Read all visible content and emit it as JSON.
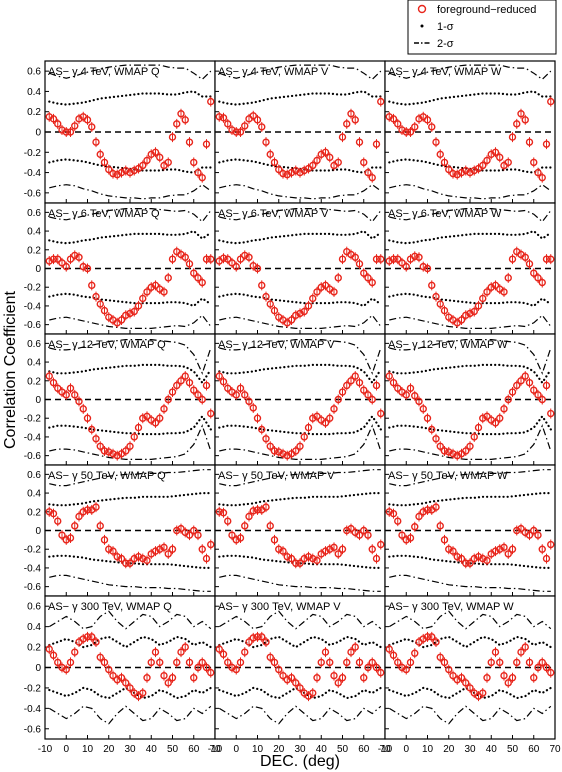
{
  "figure": {
    "ylabel": "Correlation Coefficient",
    "xlabel": "DEC. (deg)",
    "legend": {
      "placement": "top-right",
      "entries": [
        {
          "label": "foreground−reduced",
          "marker": "circle",
          "color": "#e8251b"
        },
        {
          "label": "1-σ",
          "marker": "dot",
          "color": "#000000"
        },
        {
          "label": "2-σ",
          "marker": "dash-dot",
          "color": "#000000"
        }
      ]
    },
    "colors": {
      "data": "#e8251b",
      "band": "#000000",
      "axis": "#000000"
    }
  },
  "chart_data": {
    "type": "scatter",
    "layout": "5x3 grid",
    "xlim": [
      -10,
      70
    ],
    "ylim": [
      -0.7,
      0.7
    ],
    "x_ticks": [
      -10,
      0,
      10,
      20,
      30,
      40,
      50,
      60,
      70
    ],
    "y_ticks": [
      0.6,
      0.4,
      0.2,
      0,
      -0.2,
      -0.4,
      -0.6
    ],
    "y_tick_labels": [
      "0.6",
      "0.4",
      "0.2",
      "0",
      "-0.2",
      "-0.4",
      "-0.6"
    ],
    "grid": false,
    "zero_line": "dashed",
    "dec": [
      -8,
      -6,
      -4,
      -2,
      0,
      2,
      4,
      6,
      8,
      10,
      12,
      14,
      16,
      18,
      20,
      22,
      24,
      26,
      28,
      30,
      32,
      34,
      36,
      38,
      40,
      42,
      44,
      46,
      48,
      50,
      52,
      54,
      56,
      58,
      60,
      62,
      64,
      66,
      68
    ],
    "band_x": [
      -8,
      -4,
      0,
      4,
      8,
      12,
      16,
      20,
      24,
      28,
      32,
      36,
      40,
      44,
      48,
      52,
      56,
      60,
      64,
      68
    ],
    "row_labels": [
      [
        "AS− γ 4 TeV, WMAP Q",
        "AS− γ 4 TeV, WMAP V",
        "AS− γ 4 TeV, WMAP W"
      ],
      [
        "AS− γ 6 TeV, WMAP Q",
        "AS− γ 6 TeV, WMAP V",
        "AS− γ 6 TeV, WMAP W"
      ],
      [
        "AS− γ 12 TeV, WMAP Q",
        "AS− γ 12 TeV, WMAP V",
        "AS− γ 12 TeV, WMAP W"
      ],
      [
        "AS− γ 50 TeV, WMAP Q",
        "AS− γ 50 TeV, WMAP V",
        "AS− γ 50 TeV, WMAP W"
      ],
      [
        "AS− γ 300 TeV, WMAP Q",
        "AS− γ 300 TeV, WMAP V",
        "AS− γ 300 TeV, WMAP W"
      ]
    ],
    "rows": [
      {
        "energy": "4 TeV",
        "values": [
          0.15,
          0.13,
          0.08,
          0.02,
          0.0,
          0.0,
          0.06,
          0.13,
          0.15,
          0.12,
          0.05,
          -0.1,
          -0.22,
          -0.3,
          -0.37,
          -0.41,
          -0.42,
          -0.4,
          -0.38,
          -0.4,
          -0.38,
          -0.36,
          -0.33,
          -0.28,
          -0.22,
          -0.2,
          -0.25,
          -0.33,
          -0.3,
          -0.05,
          0.08,
          0.18,
          0.12,
          -0.1,
          -0.3,
          -0.4,
          -0.45,
          -0.12,
          0.3
        ],
        "one_sigma_upper": [
          0.3,
          0.28,
          0.27,
          0.28,
          0.29,
          0.31,
          0.33,
          0.34,
          0.35,
          0.36,
          0.37,
          0.38,
          0.38,
          0.38,
          0.37,
          0.37,
          0.39,
          0.4,
          0.35,
          0.35
        ],
        "one_sigma_lower": [
          -0.3,
          -0.28,
          -0.27,
          -0.28,
          -0.29,
          -0.31,
          -0.33,
          -0.34,
          -0.35,
          -0.36,
          -0.37,
          -0.38,
          -0.38,
          -0.38,
          -0.37,
          -0.37,
          -0.39,
          -0.4,
          -0.35,
          -0.35
        ],
        "two_sigma_upper": [
          0.58,
          0.55,
          0.53,
          0.55,
          0.58,
          0.6,
          0.62,
          0.64,
          0.65,
          0.66,
          0.66,
          0.66,
          0.66,
          0.66,
          0.64,
          0.63,
          0.63,
          0.58,
          0.52,
          0.6
        ],
        "two_sigma_lower": [
          -0.55,
          -0.53,
          -0.52,
          -0.53,
          -0.56,
          -0.58,
          -0.61,
          -0.63,
          -0.64,
          -0.65,
          -0.65,
          -0.66,
          -0.65,
          -0.65,
          -0.63,
          -0.62,
          -0.62,
          -0.58,
          -0.52,
          -0.58
        ]
      },
      {
        "energy": "6 TeV",
        "values": [
          0.08,
          0.1,
          0.1,
          0.06,
          0.02,
          0.1,
          0.14,
          0.12,
          0.02,
          0.0,
          -0.18,
          -0.3,
          -0.38,
          -0.45,
          -0.52,
          -0.55,
          -0.58,
          -0.55,
          -0.5,
          -0.48,
          -0.46,
          -0.4,
          -0.32,
          -0.25,
          -0.2,
          -0.18,
          -0.22,
          -0.25,
          -0.1,
          0.1,
          0.18,
          0.15,
          0.12,
          0.05,
          -0.05,
          -0.1,
          -0.15,
          0.1,
          0.1
        ],
        "one_sigma_upper": [
          0.3,
          0.28,
          0.27,
          0.28,
          0.3,
          0.31,
          0.33,
          0.34,
          0.35,
          0.36,
          0.37,
          0.37,
          0.37,
          0.37,
          0.36,
          0.36,
          0.37,
          0.4,
          0.32,
          0.38
        ],
        "one_sigma_lower": [
          -0.3,
          -0.28,
          -0.27,
          -0.28,
          -0.3,
          -0.31,
          -0.33,
          -0.34,
          -0.35,
          -0.36,
          -0.37,
          -0.37,
          -0.37,
          -0.37,
          -0.36,
          -0.36,
          -0.37,
          -0.4,
          -0.32,
          -0.38
        ],
        "two_sigma_upper": [
          0.55,
          0.53,
          0.52,
          0.54,
          0.56,
          0.58,
          0.6,
          0.62,
          0.63,
          0.64,
          0.64,
          0.64,
          0.64,
          0.63,
          0.62,
          0.61,
          0.62,
          0.58,
          0.5,
          0.62
        ],
        "two_sigma_lower": [
          -0.55,
          -0.53,
          -0.52,
          -0.54,
          -0.56,
          -0.58,
          -0.6,
          -0.62,
          -0.63,
          -0.64,
          -0.64,
          -0.64,
          -0.64,
          -0.63,
          -0.62,
          -0.61,
          -0.62,
          -0.58,
          -0.5,
          -0.62
        ]
      },
      {
        "energy": "12 TeV",
        "values": [
          0.25,
          0.18,
          0.12,
          0.08,
          0.05,
          0.12,
          0.05,
          -0.02,
          -0.1,
          -0.2,
          -0.32,
          -0.42,
          -0.5,
          -0.55,
          -0.56,
          -0.58,
          -0.6,
          -0.58,
          -0.55,
          -0.5,
          -0.4,
          -0.3,
          -0.2,
          -0.18,
          -0.22,
          -0.25,
          -0.2,
          -0.1,
          0.0,
          0.08,
          0.15,
          0.2,
          0.25,
          0.18,
          0.1,
          0.05,
          0.0,
          0.15,
          -0.15
        ],
        "one_sigma_upper": [
          0.3,
          0.28,
          0.28,
          0.29,
          0.3,
          0.32,
          0.33,
          0.34,
          0.35,
          0.36,
          0.36,
          0.37,
          0.37,
          0.37,
          0.36,
          0.36,
          0.35,
          0.3,
          0.18,
          0.32
        ],
        "one_sigma_lower": [
          -0.3,
          -0.28,
          -0.28,
          -0.29,
          -0.3,
          -0.32,
          -0.33,
          -0.34,
          -0.35,
          -0.36,
          -0.36,
          -0.37,
          -0.37,
          -0.37,
          -0.36,
          -0.36,
          -0.35,
          -0.3,
          -0.18,
          -0.32
        ],
        "two_sigma_upper": [
          0.55,
          0.53,
          0.53,
          0.54,
          0.56,
          0.58,
          0.6,
          0.62,
          0.63,
          0.64,
          0.64,
          0.64,
          0.64,
          0.63,
          0.62,
          0.61,
          0.58,
          0.48,
          0.28,
          0.55
        ],
        "two_sigma_lower": [
          -0.55,
          -0.53,
          -0.53,
          -0.54,
          -0.56,
          -0.58,
          -0.6,
          -0.62,
          -0.63,
          -0.64,
          -0.64,
          -0.64,
          -0.64,
          -0.63,
          -0.62,
          -0.61,
          -0.58,
          -0.48,
          -0.28,
          -0.55
        ]
      },
      {
        "energy": "50 TeV",
        "values": [
          0.2,
          0.18,
          0.1,
          -0.05,
          -0.1,
          -0.08,
          0.05,
          0.15,
          0.2,
          0.22,
          0.22,
          0.25,
          0.05,
          -0.1,
          -0.2,
          -0.22,
          -0.28,
          -0.3,
          -0.35,
          -0.35,
          -0.3,
          -0.28,
          -0.3,
          -0.32,
          -0.25,
          -0.22,
          -0.2,
          -0.18,
          -0.25,
          -0.2,
          0.0,
          0.02,
          -0.02,
          -0.05,
          0.0,
          -0.05,
          -0.2,
          -0.3,
          -0.15
        ],
        "one_sigma_upper": [
          0.28,
          0.27,
          0.27,
          0.28,
          0.29,
          0.31,
          0.32,
          0.33,
          0.34,
          0.35,
          0.35,
          0.36,
          0.36,
          0.36,
          0.36,
          0.37,
          0.38,
          0.39,
          0.4,
          0.4
        ],
        "one_sigma_lower": [
          -0.28,
          -0.27,
          -0.27,
          -0.28,
          -0.29,
          -0.31,
          -0.32,
          -0.33,
          -0.34,
          -0.35,
          -0.35,
          -0.36,
          -0.36,
          -0.36,
          -0.36,
          -0.37,
          -0.38,
          -0.39,
          -0.4,
          -0.4
        ],
        "two_sigma_upper": [
          0.5,
          0.48,
          0.48,
          0.5,
          0.52,
          0.54,
          0.56,
          0.58,
          0.59,
          0.6,
          0.6,
          0.61,
          0.61,
          0.61,
          0.62,
          0.62,
          0.63,
          0.64,
          0.65,
          0.65
        ],
        "two_sigma_lower": [
          -0.5,
          -0.48,
          -0.48,
          -0.5,
          -0.52,
          -0.54,
          -0.56,
          -0.58,
          -0.59,
          -0.6,
          -0.6,
          -0.61,
          -0.61,
          -0.61,
          -0.62,
          -0.62,
          -0.63,
          -0.64,
          -0.65,
          -0.65
        ]
      },
      {
        "energy": "300 TeV",
        "values": [
          0.18,
          0.12,
          0.05,
          0.0,
          -0.02,
          0.05,
          0.15,
          0.25,
          0.28,
          0.3,
          0.3,
          0.25,
          0.1,
          0.05,
          -0.02,
          -0.08,
          -0.12,
          -0.1,
          -0.15,
          -0.2,
          -0.25,
          -0.28,
          -0.25,
          -0.1,
          0.05,
          0.15,
          0.05,
          -0.08,
          -0.15,
          -0.1,
          0.05,
          0.15,
          0.2,
          0.05,
          -0.1,
          0.0,
          0.05,
          0.0,
          -0.05
        ],
        "one_sigma_upper": [
          0.22,
          0.25,
          0.28,
          0.25,
          0.2,
          0.22,
          0.28,
          0.3,
          0.25,
          0.2,
          0.25,
          0.3,
          0.28,
          0.22,
          0.25,
          0.3,
          0.28,
          0.22,
          0.25,
          0.2
        ],
        "one_sigma_lower": [
          -0.22,
          -0.25,
          -0.28,
          -0.25,
          -0.2,
          -0.22,
          -0.28,
          -0.3,
          -0.25,
          -0.2,
          -0.25,
          -0.3,
          -0.28,
          -0.22,
          -0.25,
          -0.3,
          -0.28,
          -0.22,
          -0.25,
          -0.2
        ],
        "two_sigma_upper": [
          0.4,
          0.45,
          0.5,
          0.45,
          0.38,
          0.4,
          0.5,
          0.55,
          0.45,
          0.38,
          0.45,
          0.52,
          0.5,
          0.4,
          0.45,
          0.52,
          0.5,
          0.4,
          0.45,
          0.38
        ],
        "two_sigma_lower": [
          -0.4,
          -0.45,
          -0.5,
          -0.45,
          -0.38,
          -0.4,
          -0.5,
          -0.55,
          -0.45,
          -0.38,
          -0.45,
          -0.52,
          -0.5,
          -0.4,
          -0.45,
          -0.52,
          -0.5,
          -0.4,
          -0.45,
          -0.38
        ]
      }
    ],
    "column_offsets": [
      {
        "band": "WMAP Q",
        "delta": [
          0,
          0,
          0,
          0,
          0,
          0,
          0,
          0,
          0,
          0,
          0,
          0,
          0,
          0,
          0,
          0,
          0,
          0,
          0,
          0,
          0,
          0,
          0,
          0,
          0,
          0,
          0,
          0,
          0,
          0,
          0,
          0,
          0,
          0,
          0,
          0,
          0,
          0,
          0
        ]
      },
      {
        "band": "WMAP V",
        "delta": [
          0,
          0.01,
          0,
          0,
          0,
          0,
          0,
          0,
          0.01,
          0,
          0,
          0,
          0,
          0,
          0,
          0,
          0,
          0,
          0,
          0,
          0,
          0,
          0,
          0,
          0,
          0,
          0,
          0,
          0,
          0,
          0,
          0,
          0,
          0,
          0,
          0,
          0,
          0,
          0
        ]
      },
      {
        "band": "WMAP W",
        "delta": [
          0,
          0,
          0,
          0,
          0,
          0,
          -0.01,
          0,
          0,
          0,
          0,
          0,
          0,
          0,
          0,
          0,
          0,
          0,
          0,
          0,
          0,
          0,
          0,
          0,
          0,
          0,
          0,
          0,
          0,
          0,
          0,
          0,
          0,
          0,
          0,
          0,
          0,
          0,
          0
        ]
      }
    ]
  }
}
